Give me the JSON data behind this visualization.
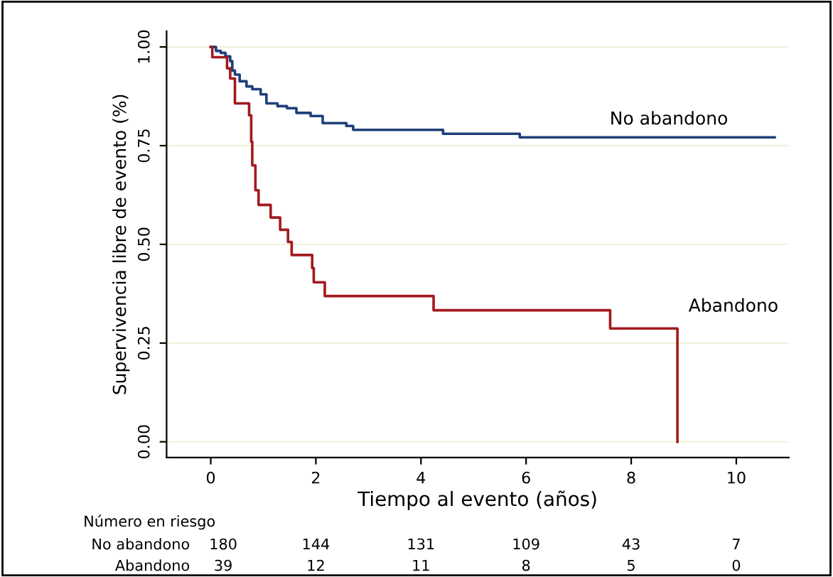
{
  "chart_data": {
    "type": "step",
    "xlabel": "Tiempo al evento (años)",
    "ylabel": "Supervivencia libre de evento (%)",
    "xlim": [
      -0.84,
      11
    ],
    "xticks": [
      0,
      2,
      4,
      6,
      8,
      10
    ],
    "ylim": [
      -0.04,
      1.04
    ],
    "yticks": [
      {
        "value": 0,
        "label": "0.00"
      },
      {
        "value": 0.25,
        "label": "0.25"
      },
      {
        "value": 0.5,
        "label": "0.50"
      },
      {
        "value": 0.75,
        "label": "0.75"
      },
      {
        "value": 1,
        "label": "1.00"
      }
    ],
    "grid": "y",
    "legend": false,
    "line_style": "solid",
    "marker": "none",
    "series": [
      {
        "name": "No abandono",
        "color": "#1f3f7a",
        "x": [
          0,
          0.1,
          0.19,
          0.28,
          0.37,
          0.41,
          0.46,
          0.55,
          0.68,
          0.79,
          0.95,
          1.06,
          1.27,
          1.45,
          1.63,
          1.9,
          2.13,
          2.58,
          2.71,
          4.42,
          5.88,
          10.73
        ],
        "values": [
          1.0,
          0.99,
          0.985,
          0.976,
          0.964,
          0.94,
          0.93,
          0.913,
          0.9,
          0.893,
          0.88,
          0.857,
          0.85,
          0.845,
          0.833,
          0.825,
          0.807,
          0.8,
          0.79,
          0.78,
          0.771,
          0.771
        ]
      },
      {
        "name": "Abandono",
        "color": "#a31a1e",
        "x": [
          0,
          0.03,
          0.31,
          0.37,
          0.46,
          0.73,
          0.77,
          0.79,
          0.85,
          0.91,
          1.14,
          1.32,
          1.47,
          1.54,
          1.93,
          1.96,
          2.17,
          4.24,
          7.6,
          8.88
        ],
        "values": [
          1.0,
          0.974,
          0.946,
          0.92,
          0.857,
          0.827,
          0.76,
          0.7,
          0.637,
          0.6,
          0.568,
          0.537,
          0.506,
          0.473,
          0.44,
          0.404,
          0.369,
          0.333,
          0.287,
          0.0
        ]
      }
    ],
    "annotations": [
      "Número en riesgo",
      "No abandono",
      "180",
      "144",
      "131",
      "109",
      "43",
      "7",
      "Abandono",
      "39",
      "12",
      "11",
      "8",
      "5",
      "0"
    ]
  }
}
